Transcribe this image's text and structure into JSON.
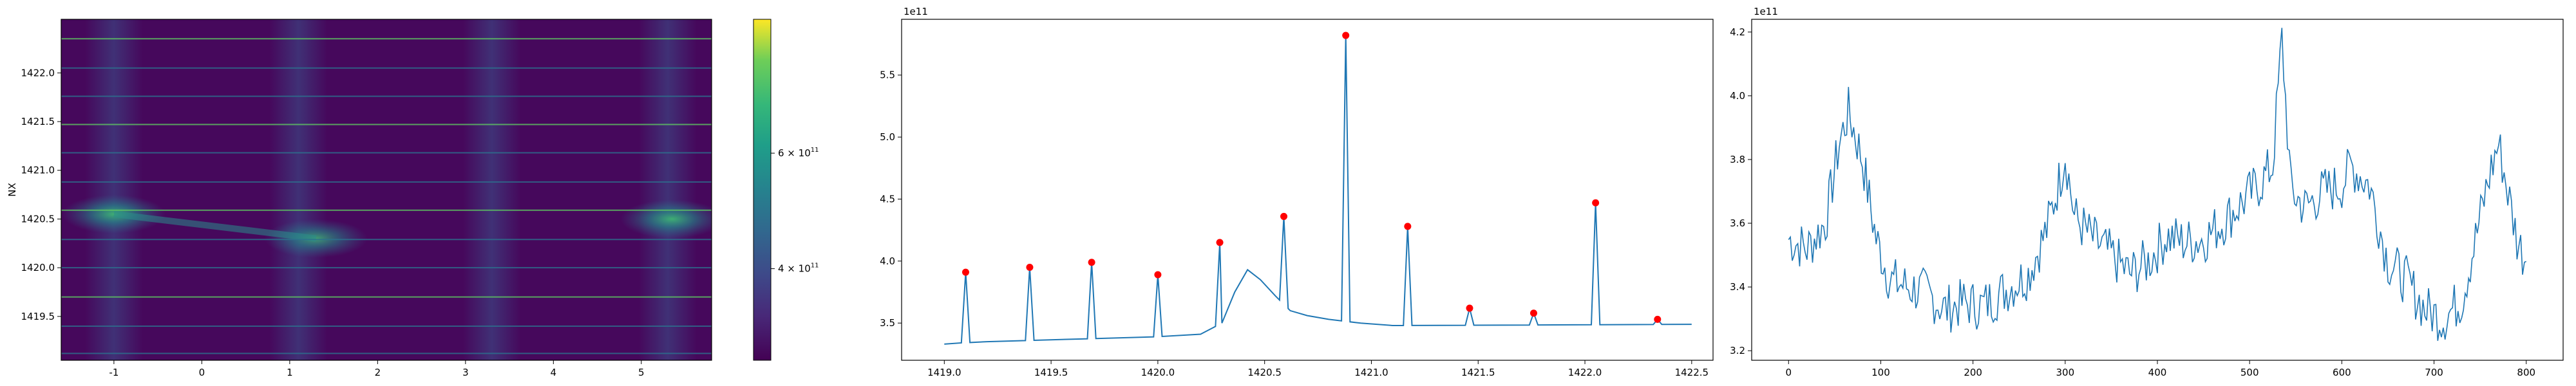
{
  "chart_data": [
    {
      "type": "heatmap",
      "title": "",
      "xlabel": "",
      "ylabel": "NX",
      "xlim": [
        -1.6,
        5.8
      ],
      "ylim": [
        1419.05,
        1422.55
      ],
      "x_ticks": [
        -1,
        0,
        1,
        2,
        3,
        4,
        5
      ],
      "y_ticks": [
        1419.5,
        1420.0,
        1420.5,
        1421.0,
        1421.5,
        1422.0
      ],
      "colormap": "viridis",
      "colorbar": {
        "scale": "log",
        "range": [
          290000000000.0,
          960000000000.0
        ],
        "ticks": [
          {
            "value": 600000000000.0,
            "label": "6 × 10",
            "exp": "11"
          },
          {
            "value": 400000000000.0,
            "label": "4 × 10",
            "exp": "11"
          }
        ]
      },
      "horizontal_lines_y": [
        1419.12,
        1419.4,
        1419.7,
        1420.0,
        1420.29,
        1420.59,
        1420.88,
        1421.18,
        1421.47,
        1421.76,
        1422.05,
        1422.35
      ],
      "vertical_bands_x": [
        -1.0,
        1.1,
        3.3,
        5.3
      ],
      "hotspots": [
        {
          "x": -1.0,
          "y": 1420.55,
          "intensity": 0.55
        },
        {
          "x": 1.3,
          "y": 1420.3,
          "intensity": 0.45
        },
        {
          "x": 5.35,
          "y": 1420.5,
          "intensity": 0.55
        }
      ],
      "grid": false
    },
    {
      "type": "line",
      "title": "",
      "offset_label": "1e11",
      "xlim": [
        1418.8,
        1422.6
      ],
      "ylim": [
        3.2,
        5.95
      ],
      "x_ticks": [
        1419.0,
        1419.5,
        1420.0,
        1420.5,
        1421.0,
        1421.5,
        1422.0,
        1422.5
      ],
      "y_ticks": [
        3.5,
        4.0,
        4.5,
        5.0,
        5.5
      ],
      "baseline": [
        [
          1419.0,
          3.33
        ],
        [
          1419.08,
          3.34
        ],
        [
          1419.2,
          3.35
        ],
        [
          1420.0,
          3.39
        ],
        [
          1420.2,
          3.41
        ],
        [
          1420.3,
          3.5
        ],
        [
          1420.36,
          3.75
        ],
        [
          1420.42,
          3.93
        ],
        [
          1420.48,
          3.85
        ],
        [
          1420.55,
          3.72
        ],
        [
          1420.62,
          3.6
        ],
        [
          1420.7,
          3.56
        ],
        [
          1420.8,
          3.53
        ],
        [
          1420.95,
          3.5
        ],
        [
          1421.1,
          3.48
        ],
        [
          1422.5,
          3.49
        ]
      ],
      "peaks": [
        {
          "x": 1419.1,
          "y": 3.91
        },
        {
          "x": 1419.4,
          "y": 3.95
        },
        {
          "x": 1419.69,
          "y": 3.99
        },
        {
          "x": 1420.0,
          "y": 3.89
        },
        {
          "x": 1420.29,
          "y": 4.15
        },
        {
          "x": 1420.59,
          "y": 4.36
        },
        {
          "x": 1420.88,
          "y": 5.82
        },
        {
          "x": 1421.17,
          "y": 4.28
        },
        {
          "x": 1421.46,
          "y": 3.62
        },
        {
          "x": 1421.76,
          "y": 3.58
        },
        {
          "x": 1422.05,
          "y": 4.47
        },
        {
          "x": 1422.34,
          "y": 3.53
        }
      ],
      "marker_color": "#ff0000",
      "line_color": "#1f77b4",
      "grid": false
    },
    {
      "type": "line",
      "title": "",
      "offset_label": "1e11",
      "xlim": [
        -40,
        840
      ],
      "ylim": [
        3.17,
        4.24
      ],
      "x_ticks": [
        0,
        100,
        200,
        300,
        400,
        500,
        600,
        700,
        800
      ],
      "y_ticks": [
        3.2,
        3.4,
        3.6,
        3.8,
        4.0,
        4.2
      ],
      "x": [
        0,
        20,
        40,
        55,
        65,
        80,
        95,
        110,
        130,
        150,
        170,
        190,
        210,
        230,
        260,
        280,
        295,
        300,
        310,
        330,
        350,
        370,
        390,
        410,
        430,
        450,
        470,
        490,
        510,
        525,
        535,
        545,
        560,
        580,
        600,
        610,
        630,
        650,
        670,
        690,
        710,
        730,
        745,
        760,
        770,
        780,
        790,
        800
      ],
      "y": [
        3.55,
        3.52,
        3.6,
        3.85,
        3.95,
        3.8,
        3.55,
        3.42,
        3.4,
        3.38,
        3.33,
        3.35,
        3.34,
        3.38,
        3.44,
        3.58,
        3.75,
        3.82,
        3.62,
        3.55,
        3.5,
        3.44,
        3.48,
        3.56,
        3.54,
        3.55,
        3.6,
        3.66,
        3.72,
        3.78,
        4.18,
        3.7,
        3.65,
        3.7,
        3.72,
        3.78,
        3.72,
        3.48,
        3.42,
        3.33,
        3.3,
        3.36,
        3.55,
        3.75,
        3.85,
        3.7,
        3.55,
        3.48
      ],
      "line_color": "#1f77b4",
      "grid": false
    }
  ]
}
